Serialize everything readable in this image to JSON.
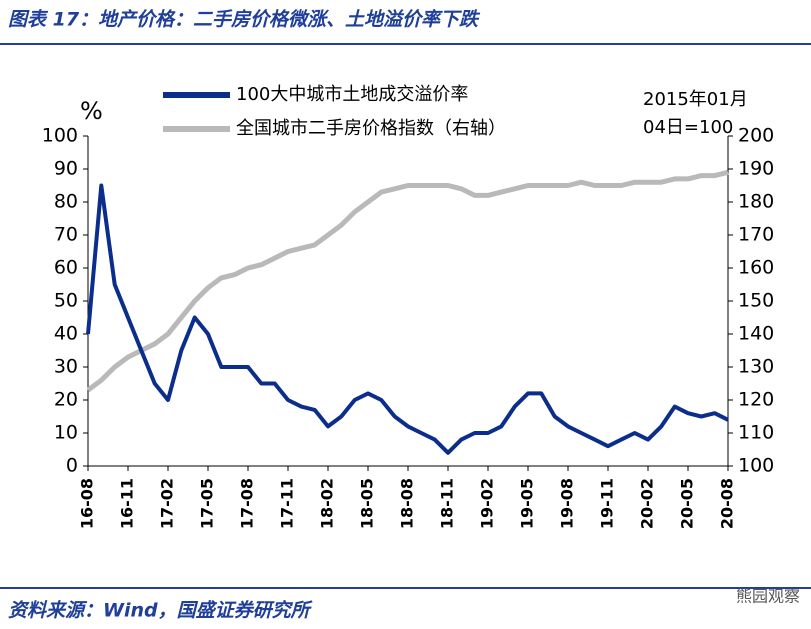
{
  "chart_data": {
    "type": "line",
    "title": "图表 17：地产价格：二手房价格微涨、土地溢价率下跌",
    "y_label": "%",
    "annotation": [
      "2015年01月",
      "04日=100"
    ],
    "source": "资料来源：Wind，国盛证券研究所",
    "watermark": "熊园观察",
    "categories": [
      "16-08",
      null,
      null,
      "16-11",
      null,
      null,
      "17-02",
      null,
      null,
      "17-05",
      null,
      null,
      "17-08",
      null,
      null,
      "17-11",
      null,
      null,
      "18-02",
      null,
      null,
      "18-05",
      null,
      null,
      "18-08",
      null,
      null,
      "18-11",
      null,
      null,
      "19-02",
      null,
      null,
      "19-05",
      null,
      null,
      "19-08",
      null,
      null,
      "19-11",
      null,
      null,
      "20-02",
      null,
      null,
      "20-05",
      null,
      null,
      "20-08"
    ],
    "series": [
      {
        "name": "100大中城市土地成交溢价率",
        "color": "#0b2d8c",
        "axis": "y",
        "values": [
          40,
          85,
          55,
          45,
          35,
          25,
          20,
          35,
          45,
          40,
          30,
          30,
          30,
          25,
          25,
          20,
          18,
          17,
          12,
          15,
          20,
          22,
          20,
          15,
          12,
          10,
          8,
          4,
          8,
          10,
          10,
          12,
          18,
          22,
          22,
          15,
          12,
          10,
          8,
          6,
          8,
          10,
          8,
          12,
          18,
          16,
          15,
          16,
          14
        ]
      },
      {
        "name": "全国城市二手房价格指数（右轴）",
        "color": "#b9b9b9",
        "axis": "y2",
        "values": [
          123,
          126,
          130,
          133,
          135,
          137,
          140,
          145,
          150,
          154,
          157,
          158,
          160,
          161,
          163,
          165,
          166,
          167,
          170,
          173,
          177,
          180,
          183,
          184,
          185,
          185,
          185,
          185,
          184,
          182,
          182,
          183,
          184,
          185,
          185,
          185,
          185,
          186,
          185,
          185,
          185,
          186,
          186,
          186,
          187,
          187,
          188,
          188,
          189
        ]
      }
    ],
    "ylim": [
      0,
      100
    ],
    "yticks": [
      0,
      10,
      20,
      30,
      40,
      50,
      60,
      70,
      80,
      90,
      100
    ],
    "y2lim": [
      100,
      200
    ],
    "y2ticks": [
      100,
      110,
      120,
      130,
      140,
      150,
      160,
      170,
      180,
      190,
      200
    ]
  }
}
